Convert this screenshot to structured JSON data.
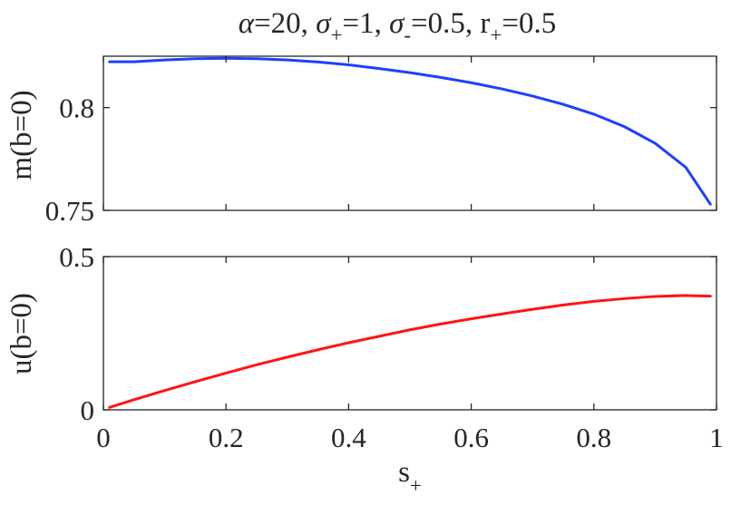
{
  "title": {
    "alpha_symbol": "α",
    "alpha_value": "=20, ",
    "sigma_symbol": "σ",
    "sigma_plus_sub": "+",
    "sigma_plus_value": "=1, ",
    "sigma_minus_sub": "-",
    "sigma_minus_value": "=0.5, ",
    "r_symbol": "r",
    "r_plus_sub": "+",
    "r_plus_value": "=0.5"
  },
  "colors": {
    "top_series": "#1f3fff",
    "bottom_series": "#ff1414",
    "axes": "#262626"
  },
  "chart_data": [
    {
      "type": "line",
      "ylabel": "m(b=0)",
      "xlim": [
        0,
        1
      ],
      "ylim": [
        0.75,
        0.825
      ],
      "xticks": [
        "0",
        "0.2",
        "0.4",
        "0.6",
        "0.8",
        "1"
      ],
      "xtick_values": [
        0,
        0.2,
        0.4,
        0.6,
        0.8,
        1
      ],
      "show_xtick_labels": false,
      "yticks": [
        "0.75",
        "0.8"
      ],
      "ytick_values": [
        0.75,
        0.8
      ],
      "grid": false,
      "series": [
        {
          "color": "#1f3fff",
          "x": [
            0.01,
            0.05,
            0.1,
            0.15,
            0.2,
            0.25,
            0.3,
            0.35,
            0.4,
            0.45,
            0.5,
            0.55,
            0.6,
            0.65,
            0.7,
            0.75,
            0.8,
            0.85,
            0.9,
            0.95,
            0.99
          ],
          "y": [
            0.8223,
            0.8223,
            0.8232,
            0.8238,
            0.824,
            0.8238,
            0.8232,
            0.8222,
            0.8208,
            0.819,
            0.817,
            0.8147,
            0.8121,
            0.8091,
            0.8056,
            0.8016,
            0.7968,
            0.7907,
            0.7826,
            0.7709,
            0.753
          ]
        }
      ]
    },
    {
      "type": "line",
      "ylabel": "u(b=0)",
      "xlabel_main": "s",
      "xlabel_sub": "+",
      "xlim": [
        0,
        1
      ],
      "ylim": [
        0,
        0.5
      ],
      "xticks": [
        "0",
        "0.2",
        "0.4",
        "0.6",
        "0.8",
        "1"
      ],
      "xtick_values": [
        0,
        0.2,
        0.4,
        0.6,
        0.8,
        1
      ],
      "show_xtick_labels": true,
      "yticks": [
        "0",
        "0.5"
      ],
      "ytick_values": [
        0,
        0.5
      ],
      "grid": false,
      "series": [
        {
          "color": "#ff1414",
          "x": [
            0.01,
            0.05,
            0.1,
            0.15,
            0.2,
            0.25,
            0.3,
            0.35,
            0.4,
            0.45,
            0.5,
            0.55,
            0.6,
            0.65,
            0.7,
            0.75,
            0.8,
            0.85,
            0.9,
            0.95,
            0.99
          ],
          "y": [
            0.008,
            0.033,
            0.063,
            0.092,
            0.12,
            0.147,
            0.172,
            0.196,
            0.219,
            0.24,
            0.261,
            0.28,
            0.297,
            0.313,
            0.328,
            0.342,
            0.354,
            0.363,
            0.37,
            0.373,
            0.371
          ]
        }
      ]
    }
  ]
}
